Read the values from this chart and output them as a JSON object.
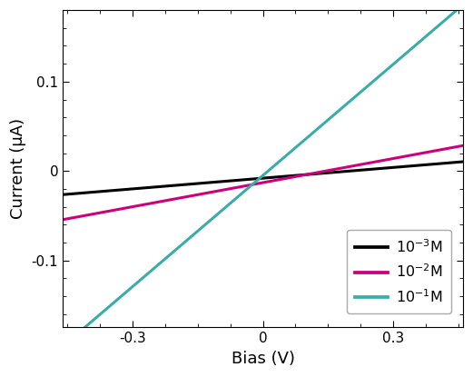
{
  "title": "",
  "xlabel": "Bias (V)",
  "ylabel": "Current (μA)",
  "xlim": [
    -0.46,
    0.46
  ],
  "ylim": [
    -0.175,
    0.18
  ],
  "xticks": [
    -0.3,
    0.0,
    0.3
  ],
  "yticks": [
    -0.1,
    0.0,
    0.1
  ],
  "lines": [
    {
      "label": "10$^{-3}$M",
      "color": "#000000",
      "linewidth": 2.2,
      "slope": 0.04,
      "intercept": -0.008
    },
    {
      "label": "10$^{-2}$M",
      "color": "#CC007A",
      "linewidth": 2.2,
      "slope": 0.09,
      "intercept": -0.013
    },
    {
      "label": "10$^{-1}$M",
      "color": "#3AADA8",
      "linewidth": 2.2,
      "slope": 0.415,
      "intercept": -0.005
    }
  ],
  "background_color": "#ffffff",
  "tick_fontsize": 11,
  "label_fontsize": 13,
  "legend_fontsize": 11.5
}
